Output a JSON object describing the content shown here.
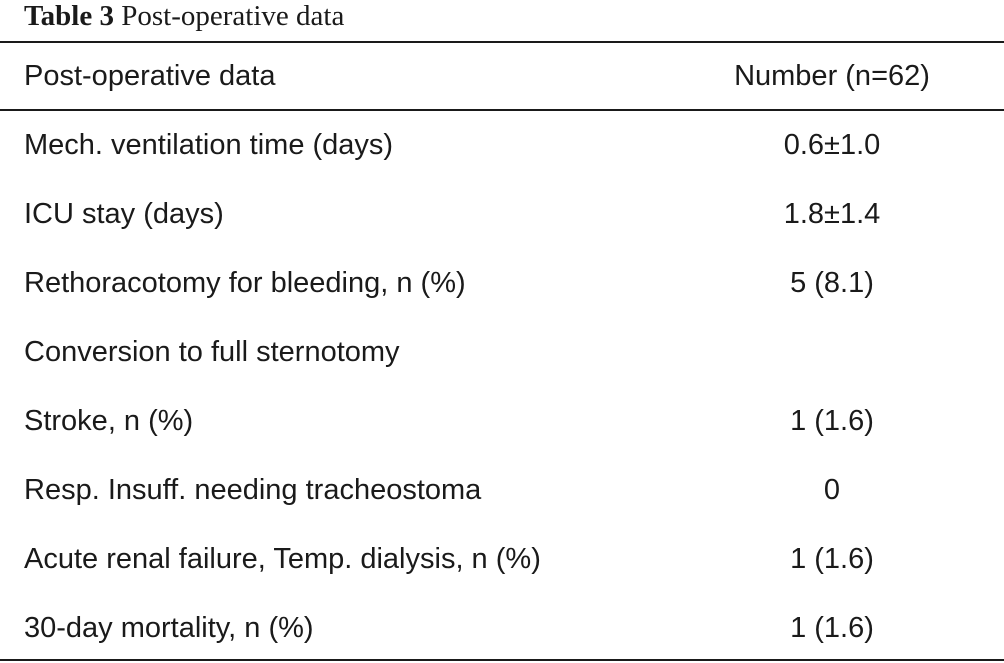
{
  "caption": {
    "label": "Table 3",
    "title": "Post-operative data"
  },
  "table": {
    "headers": [
      "Post-operative data",
      "Number (n=62)"
    ],
    "rows": [
      {
        "item": "Mech. ventilation time (days)",
        "value": "0.6±1.0"
      },
      {
        "item": "ICU stay (days)",
        "value": "1.8±1.4"
      },
      {
        "item": "Rethoracotomy for bleeding, n (%)",
        "value": "5 (8.1)"
      },
      {
        "item": "Conversion to full sternotomy",
        "value": ""
      },
      {
        "item": "Stroke, n (%)",
        "value": "1 (1.6)"
      },
      {
        "item": "Resp. Insuff. needing tracheostoma",
        "value": "0"
      },
      {
        "item": "Acute renal failure, Temp. dialysis, n (%)",
        "value": "1 (1.6)"
      },
      {
        "item": "30-day mortality, n (%)",
        "value": "1 (1.6)"
      }
    ]
  }
}
